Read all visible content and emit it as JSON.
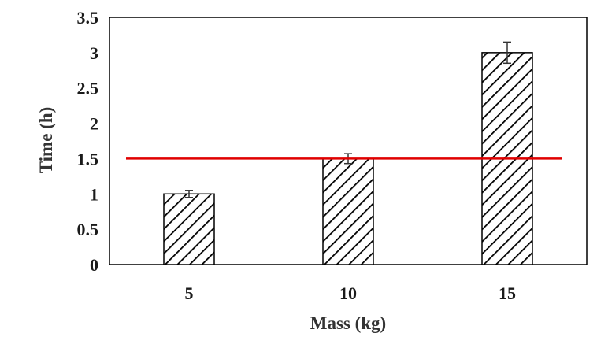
{
  "chart_data": {
    "type": "bar",
    "xlabel": "Mass (kg)",
    "ylabel": "Time  (h)",
    "categories": [
      "5",
      "10",
      "15"
    ],
    "series": [
      {
        "values": [
          1.0,
          1.5,
          3.0
        ],
        "error": [
          0.05,
          0.07,
          0.15
        ],
        "pattern": "diagonal-hatch"
      }
    ],
    "reference_line": {
      "y": 1.5,
      "color": "#e00000"
    },
    "ylim": [
      0,
      3.5
    ],
    "yticks": [
      "0",
      "0.5",
      "1",
      "1.5",
      "2",
      "2.5",
      "3",
      "3.5"
    ],
    "grid": false,
    "legend": "none"
  }
}
